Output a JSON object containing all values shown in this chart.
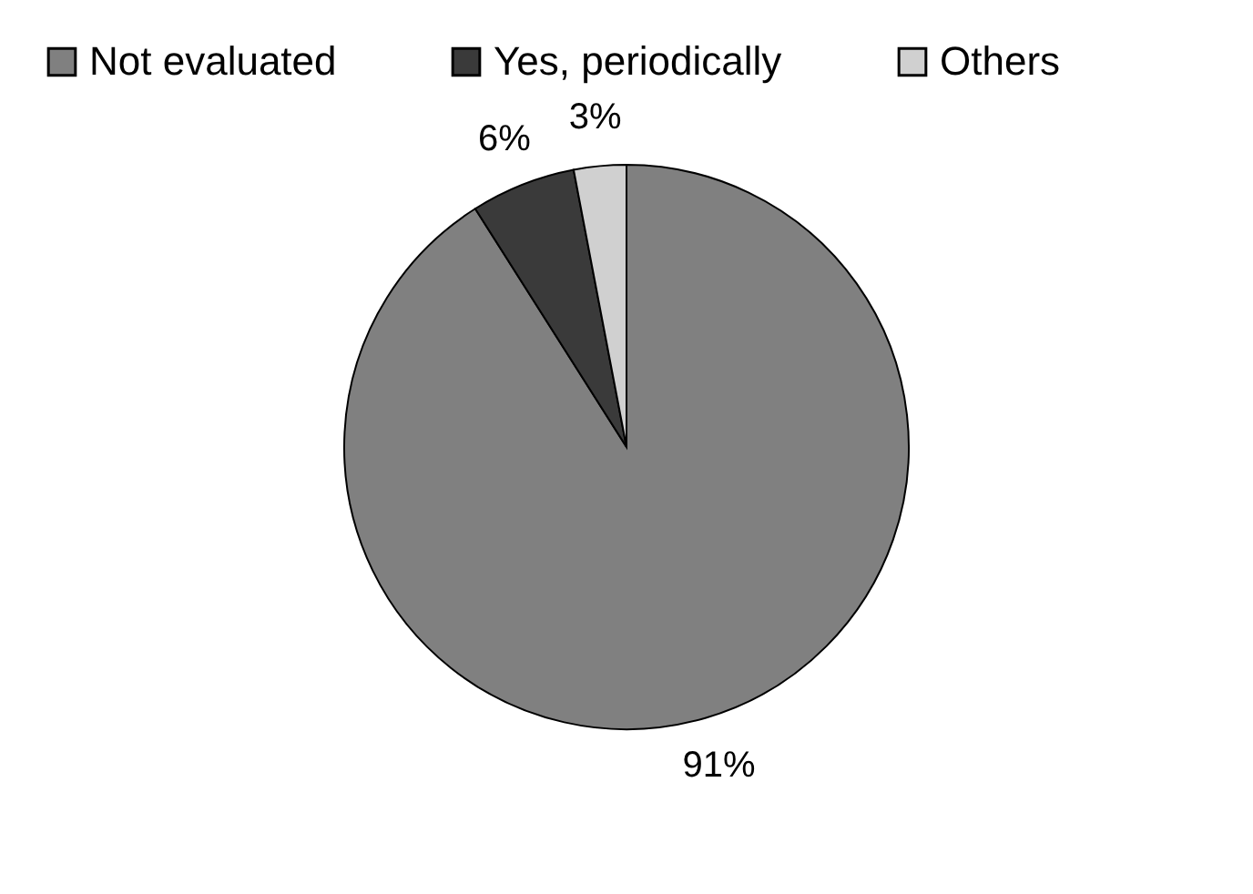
{
  "chart_data": {
    "type": "pie",
    "categories": [
      "Not evaluated",
      "Yes, periodically",
      "Others"
    ],
    "values": [
      91,
      6,
      3
    ],
    "colors": [
      "#808080",
      "#3a3a3a",
      "#d0d0d0"
    ],
    "value_labels": [
      "91%",
      "6%",
      "3%"
    ],
    "legend": "top left"
  }
}
